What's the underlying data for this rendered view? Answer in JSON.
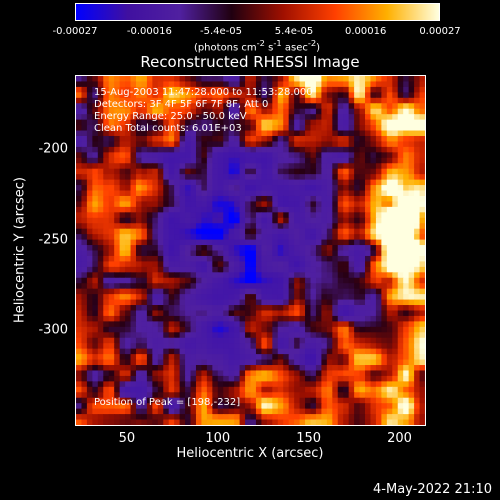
{
  "colorbar": {
    "ticks": [
      "-0.00027",
      "-0.00016",
      "-5.4e-05",
      "5.4e-05",
      "0.00016",
      "0.00027"
    ],
    "units_parts": [
      "(photons cm",
      "-2",
      " s",
      "-1",
      " asec",
      "-2",
      ")"
    ]
  },
  "title": "Reconstructed RHESSI Image",
  "annotations": {
    "time_range": "15-Aug-2003 11:47:28.000 to 11:53:28.000",
    "detectors": "Detectors: 3F 4F 5F 6F 7F 8F, Att 0",
    "energy": "Energy Range: 25.0 - 50.0 keV",
    "clean": "Clean     Total counts: 6.01E+03",
    "peak": "Position of Peak = [198,-232]"
  },
  "chart_data": {
    "type": "heatmap",
    "title": "Reconstructed RHESSI Image",
    "xlabel": "Heliocentric X (arcsec)",
    "ylabel": "Heliocentric Y (arcsec)",
    "xlim": [
      22,
      214
    ],
    "ylim": [
      -352,
      -160
    ],
    "x_ticks": [
      "50",
      "100",
      "150",
      "200"
    ],
    "y_ticks": [
      "-200",
      "-250",
      "-300"
    ],
    "colorbar_range": [
      -0.00027,
      0.00027
    ],
    "colormap": [
      "#0000ff",
      "#4010a0",
      "#5020a0",
      "#200010",
      "#a01000",
      "#ff4000",
      "#ffb000",
      "#ffffe0"
    ],
    "peak_position": [
      198,
      -232
    ]
  },
  "footer": {
    "timestamp": "4-May-2022 21:10"
  }
}
